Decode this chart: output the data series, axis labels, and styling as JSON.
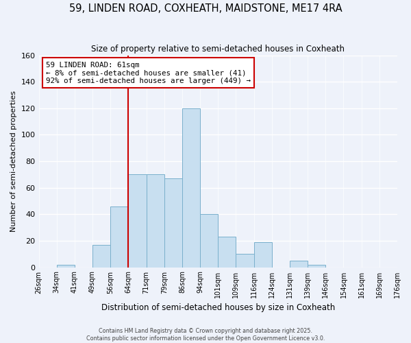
{
  "title": "59, LINDEN ROAD, COXHEATH, MAIDSTONE, ME17 4RA",
  "subtitle": "Size of property relative to semi-detached houses in Coxheath",
  "xlabel": "Distribution of semi-detached houses by size in Coxheath",
  "ylabel": "Number of semi-detached properties",
  "bin_labels": [
    "26sqm",
    "34sqm",
    "41sqm",
    "49sqm",
    "56sqm",
    "64sqm",
    "71sqm",
    "79sqm",
    "86sqm",
    "94sqm",
    "101sqm",
    "109sqm",
    "116sqm",
    "124sqm",
    "131sqm",
    "139sqm",
    "146sqm",
    "154sqm",
    "161sqm",
    "169sqm",
    "176sqm"
  ],
  "bar_heights": [
    0,
    2,
    0,
    17,
    46,
    70,
    70,
    67,
    120,
    40,
    23,
    10,
    19,
    0,
    5,
    2,
    0,
    0,
    0,
    0
  ],
  "n_bins": 20,
  "bar_color": "#c8dff0",
  "bar_edge_color": "#7ab0cc",
  "red_line_bin": 5,
  "annotation_title": "59 LINDEN ROAD: 61sqm",
  "annotation_line1": "← 8% of semi-detached houses are smaller (41)",
  "annotation_line2": "92% of semi-detached houses are larger (449) →",
  "ylim": [
    0,
    160
  ],
  "yticks": [
    0,
    20,
    40,
    60,
    80,
    100,
    120,
    140,
    160
  ],
  "background_color": "#eef2fa",
  "grid_color": "#ffffff",
  "footer1": "Contains HM Land Registry data © Crown copyright and database right 2025.",
  "footer2": "Contains public sector information licensed under the Open Government Licence v3.0."
}
